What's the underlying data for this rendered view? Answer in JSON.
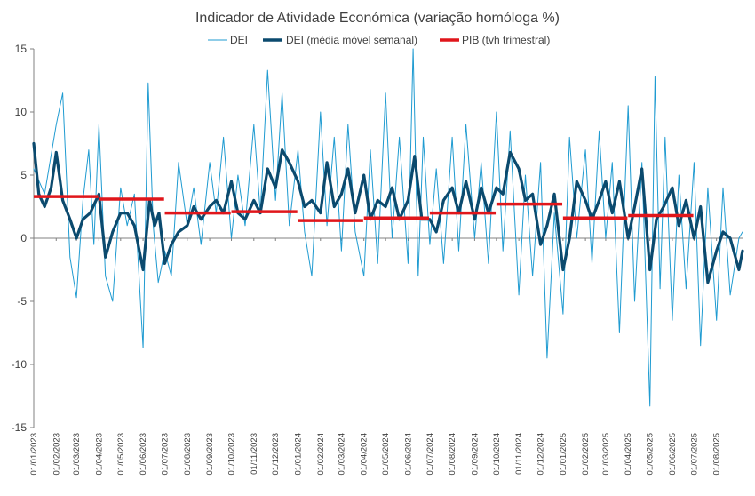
{
  "chart_data": {
    "type": "line",
    "title": "Indicador de Atividade Económica (variação homóloga %)",
    "xlabel": "",
    "ylabel": "",
    "ylim": [
      -15,
      15
    ],
    "yticks": [
      15,
      10,
      5,
      0,
      -5,
      -10,
      -15
    ],
    "legend": "top",
    "grid": false,
    "x_tick_labels": [
      "01/01/2023",
      "01/02/2023",
      "01/03/2023",
      "01/04/2023",
      "01/05/2023",
      "01/06/2023",
      "01/07/2023",
      "01/08/2023",
      "01/09/2023",
      "01/10/2023",
      "01/11/2023",
      "01/12/2023",
      "01/01/2024",
      "01/02/2024",
      "01/03/2024",
      "01/04/2024",
      "01/05/2024",
      "01/06/2024",
      "01/07/2024",
      "01/08/2024",
      "01/09/2024",
      "01/10/2024",
      "01/11/2024",
      "01/12/2024",
      "01/01/2025",
      "01/02/2025",
      "01/03/2025",
      "01/04/2025",
      "01/05/2025",
      "01/06/2025",
      "01/07/2025",
      "01/08/2025"
    ],
    "x_range": [
      "2023-01-01",
      "2025-09-06"
    ],
    "series": [
      {
        "name": "DEI",
        "color": "#1f9bd1",
        "style": "thin",
        "x": [
          "2023-01-01",
          "2023-01-16",
          "2023-02-01",
          "2023-02-10",
          "2023-02-20",
          "2023-03-01",
          "2023-03-10",
          "2023-03-18",
          "2023-03-25",
          "2023-04-01",
          "2023-04-10",
          "2023-04-20",
          "2023-05-01",
          "2023-05-10",
          "2023-05-20",
          "2023-06-01",
          "2023-06-08",
          "2023-06-15",
          "2023-06-22",
          "2023-07-01",
          "2023-07-10",
          "2023-07-20",
          "2023-08-01",
          "2023-08-10",
          "2023-08-20",
          "2023-09-01",
          "2023-09-10",
          "2023-09-20",
          "2023-10-01",
          "2023-10-10",
          "2023-10-20",
          "2023-11-01",
          "2023-11-10",
          "2023-11-20",
          "2023-12-01",
          "2023-12-10",
          "2023-12-20",
          "2024-01-01",
          "2024-01-10",
          "2024-01-20",
          "2024-02-01",
          "2024-02-10",
          "2024-02-20",
          "2024-03-01",
          "2024-03-10",
          "2024-03-20",
          "2024-04-01",
          "2024-04-10",
          "2024-04-20",
          "2024-05-01",
          "2024-05-10",
          "2024-05-20",
          "2024-06-01",
          "2024-06-08",
          "2024-06-15",
          "2024-06-22",
          "2024-07-01",
          "2024-07-10",
          "2024-07-20",
          "2024-08-01",
          "2024-08-10",
          "2024-08-20",
          "2024-09-01",
          "2024-09-10",
          "2024-09-20",
          "2024-10-01",
          "2024-10-10",
          "2024-10-20",
          "2024-11-01",
          "2024-11-10",
          "2024-11-20",
          "2024-12-01",
          "2024-12-10",
          "2024-12-20",
          "2025-01-01",
          "2025-01-10",
          "2025-01-20",
          "2025-02-01",
          "2025-02-10",
          "2025-02-20",
          "2025-03-01",
          "2025-03-10",
          "2025-03-20",
          "2025-04-01",
          "2025-04-10",
          "2025-04-20",
          "2025-05-01",
          "2025-05-08",
          "2025-05-15",
          "2025-05-22",
          "2025-06-01",
          "2025-06-10",
          "2025-06-20",
          "2025-07-01",
          "2025-07-10",
          "2025-07-20",
          "2025-08-01",
          "2025-08-10",
          "2025-08-20",
          "2025-09-01",
          "2025-09-06"
        ],
        "values": [
          5.5,
          3.5,
          9.0,
          11.5,
          -1.5,
          -4.7,
          3.0,
          7.0,
          -0.5,
          9.0,
          -3.0,
          -5.0,
          4.0,
          1.0,
          3.5,
          -8.7,
          12.3,
          1.0,
          -3.5,
          -1.0,
          -3.0,
          6.0,
          1.0,
          4.0,
          -0.5,
          6.0,
          2.0,
          8.0,
          0.0,
          5.0,
          1.0,
          9.0,
          2.0,
          13.3,
          3.0,
          11.5,
          1.0,
          7.0,
          0.5,
          -3.0,
          10.0,
          1.0,
          8.0,
          -1.0,
          9.0,
          0.5,
          -3.0,
          7.0,
          -2.0,
          11.5,
          0.0,
          8.0,
          -2.0,
          15.0,
          -3.0,
          8.0,
          -0.5,
          5.5,
          -2.0,
          8.0,
          -1.0,
          9.0,
          0.0,
          6.0,
          -2.0,
          10.0,
          -1.0,
          8.5,
          -4.5,
          5.0,
          -3.0,
          6.0,
          -9.5,
          2.0,
          -6.0,
          8.0,
          0.0,
          7.0,
          -2.0,
          8.5,
          0.0,
          6.0,
          -7.5,
          10.5,
          -5.0,
          6.0,
          -13.3,
          12.8,
          -4.0,
          8.0,
          -6.5,
          5.0,
          -4.0,
          6.0,
          -8.5,
          4.0,
          -6.5,
          4.0,
          -4.5,
          0.0,
          0.5
        ]
      },
      {
        "name": "DEI (média móvel semanal)",
        "color": "#0b4a6e",
        "style": "thick",
        "x": [
          "2023-01-01",
          "2023-01-08",
          "2023-01-16",
          "2023-01-25",
          "2023-02-01",
          "2023-02-10",
          "2023-02-20",
          "2023-03-01",
          "2023-03-10",
          "2023-03-20",
          "2023-04-01",
          "2023-04-10",
          "2023-04-20",
          "2023-05-01",
          "2023-05-10",
          "2023-05-20",
          "2023-06-01",
          "2023-06-10",
          "2023-06-17",
          "2023-06-23",
          "2023-07-01",
          "2023-07-10",
          "2023-07-20",
          "2023-08-01",
          "2023-08-10",
          "2023-08-20",
          "2023-09-01",
          "2023-09-10",
          "2023-09-20",
          "2023-10-01",
          "2023-10-10",
          "2023-10-20",
          "2023-11-01",
          "2023-11-10",
          "2023-11-20",
          "2023-12-01",
          "2023-12-10",
          "2023-12-20",
          "2024-01-01",
          "2024-01-10",
          "2024-01-20",
          "2024-02-01",
          "2024-02-10",
          "2024-02-20",
          "2024-03-01",
          "2024-03-10",
          "2024-03-20",
          "2024-04-01",
          "2024-04-10",
          "2024-04-20",
          "2024-05-01",
          "2024-05-10",
          "2024-05-20",
          "2024-06-01",
          "2024-06-10",
          "2024-06-20",
          "2024-07-01",
          "2024-07-10",
          "2024-07-20",
          "2024-08-01",
          "2024-08-10",
          "2024-08-20",
          "2024-09-01",
          "2024-09-10",
          "2024-09-20",
          "2024-10-01",
          "2024-10-10",
          "2024-10-20",
          "2024-11-01",
          "2024-11-10",
          "2024-11-20",
          "2024-12-01",
          "2024-12-10",
          "2024-12-20",
          "2025-01-01",
          "2025-01-10",
          "2025-01-20",
          "2025-02-01",
          "2025-02-10",
          "2025-02-20",
          "2025-03-01",
          "2025-03-10",
          "2025-03-20",
          "2025-04-01",
          "2025-04-10",
          "2025-04-20",
          "2025-05-01",
          "2025-05-10",
          "2025-05-20",
          "2025-06-01",
          "2025-06-10",
          "2025-06-20",
          "2025-07-01",
          "2025-07-10",
          "2025-07-20",
          "2025-08-01",
          "2025-08-10",
          "2025-08-20",
          "2025-09-01",
          "2025-09-06"
        ],
        "values": [
          7.5,
          3.5,
          2.5,
          4.0,
          6.8,
          3.0,
          1.5,
          0.0,
          1.5,
          2.0,
          3.5,
          -1.5,
          0.5,
          2.0,
          2.0,
          1.0,
          -2.5,
          3.0,
          1.0,
          2.0,
          -2.0,
          -0.5,
          0.5,
          1.0,
          2.5,
          1.5,
          2.5,
          3.0,
          2.0,
          4.5,
          2.0,
          1.5,
          3.0,
          2.0,
          5.5,
          4.0,
          7.0,
          6.0,
          4.5,
          2.5,
          3.0,
          2.0,
          6.0,
          2.5,
          3.5,
          5.5,
          2.0,
          5.0,
          1.5,
          3.0,
          2.5,
          4.0,
          1.5,
          3.0,
          6.5,
          1.5,
          1.5,
          0.5,
          3.0,
          4.0,
          2.0,
          4.5,
          1.5,
          4.0,
          2.0,
          4.0,
          3.5,
          6.8,
          5.5,
          3.0,
          3.5,
          -0.5,
          1.0,
          3.5,
          -2.5,
          0.0,
          4.5,
          3.0,
          1.5,
          3.0,
          4.5,
          2.0,
          4.5,
          0.0,
          2.5,
          5.5,
          -2.5,
          1.5,
          2.5,
          4.0,
          1.0,
          3.0,
          0.0,
          2.5,
          -3.5,
          -1.0,
          0.5,
          0.0,
          -2.5,
          -1.0
        ]
      },
      {
        "name": "PIB (tvh trimestral)",
        "color": "#e0161b",
        "style": "step",
        "quarters": [
          {
            "start": "2023-01-01",
            "end": "2023-03-31",
            "value": 3.3
          },
          {
            "start": "2023-04-01",
            "end": "2023-06-30",
            "value": 3.1
          },
          {
            "start": "2023-07-01",
            "end": "2023-09-30",
            "value": 2.0
          },
          {
            "start": "2023-10-01",
            "end": "2023-12-31",
            "value": 2.1
          },
          {
            "start": "2024-01-01",
            "end": "2024-03-31",
            "value": 1.4
          },
          {
            "start": "2024-04-01",
            "end": "2024-06-30",
            "value": 1.6
          },
          {
            "start": "2024-07-01",
            "end": "2024-09-30",
            "value": 2.0
          },
          {
            "start": "2024-10-01",
            "end": "2024-12-31",
            "value": 2.7
          },
          {
            "start": "2025-01-01",
            "end": "2025-03-31",
            "value": 1.6
          },
          {
            "start": "2025-04-01",
            "end": "2025-06-30",
            "value": 1.8
          }
        ]
      }
    ]
  }
}
